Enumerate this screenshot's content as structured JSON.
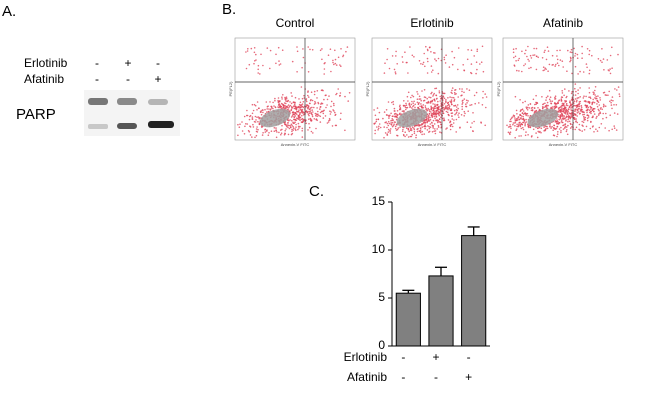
{
  "panel_a": {
    "label": "A.",
    "protein": "PARP",
    "rows": [
      {
        "name": "Erlotinib",
        "signs": [
          "-",
          "+",
          "-"
        ]
      },
      {
        "name": "Afatinib",
        "signs": [
          "-",
          "-",
          "+"
        ]
      }
    ]
  },
  "panel_b": {
    "label": "B.",
    "x_axis_label": "Annexin-V FITC",
    "y_axis_label": "PE(FL2)",
    "plots": [
      {
        "title": "Control"
      },
      {
        "title": "Erlotinib"
      },
      {
        "title": "Afatinib"
      }
    ]
  },
  "chart_data": {
    "type": "bar",
    "panel_label": "C.",
    "categories": [
      null,
      null,
      null
    ],
    "values": [
      5.5,
      7.3,
      11.5
    ],
    "errors": [
      0.3,
      0.9,
      0.9
    ],
    "color": "#808080",
    "ylim": [
      0,
      15
    ],
    "yticks": [
      0,
      5,
      10,
      15
    ],
    "rows": [
      {
        "name": "Erlotinib",
        "signs": [
          "-",
          "+",
          "-"
        ]
      },
      {
        "name": "Afatinib",
        "signs": [
          "-",
          "-",
          "+"
        ]
      }
    ]
  }
}
